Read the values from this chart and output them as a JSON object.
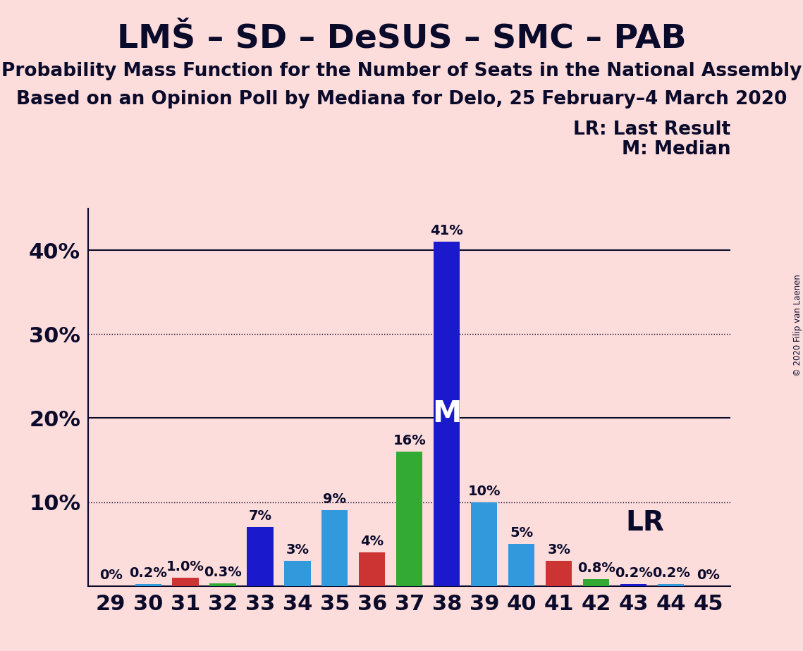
{
  "title": "LMŠ – SD – DeSUS – SMC – PAB",
  "subtitle1": "Probability Mass Function for the Number of Seats in the National Assembly",
  "subtitle2": "Based on an Opinion Poll by Mediana for Delo, 25 February–4 March 2020",
  "copyright": "© 2020 Filip van Laenen",
  "seats": [
    29,
    30,
    31,
    32,
    33,
    34,
    35,
    36,
    37,
    38,
    39,
    40,
    41,
    42,
    43,
    44,
    45
  ],
  "values": [
    0.0,
    0.2,
    1.0,
    0.3,
    7.0,
    3.0,
    9.0,
    4.0,
    16.0,
    41.0,
    10.0,
    5.0,
    3.0,
    0.8,
    0.2,
    0.2,
    0.0
  ],
  "bar_colors": [
    "#1a1acc",
    "#3399dd",
    "#cc3333",
    "#33aa33",
    "#1a1acc",
    "#3399dd",
    "#3399dd",
    "#cc3333",
    "#33aa33",
    "#1a1acc",
    "#3399dd",
    "#3399dd",
    "#cc3333",
    "#33aa33",
    "#1a1acc",
    "#3399dd",
    "#1a1acc"
  ],
  "labels": [
    "0%",
    "0.2%",
    "1.0%",
    "0.3%",
    "7%",
    "3%",
    "9%",
    "4%",
    "16%",
    "41%",
    "10%",
    "5%",
    "3%",
    "0.8%",
    "0.2%",
    "0.2%",
    "0%"
  ],
  "median_seat": 38,
  "lr_seat": 41,
  "background_color": "#fddcdc",
  "ylim_max": 45,
  "bar_width": 0.7,
  "title_fontsize": 34,
  "subtitle_fontsize": 19,
  "bar_label_fontsize": 14,
  "tick_fontsize": 22,
  "legend_fontsize": 19,
  "median_label_fontsize": 30,
  "lr_label_fontsize": 28,
  "text_color": "#0a0a2a",
  "solid_gridlines": [
    20,
    40
  ],
  "dotted_gridlines": [
    10,
    30
  ],
  "ytick_positions": [
    0,
    10,
    20,
    30,
    40
  ],
  "ytick_labels": [
    "",
    "10%",
    "20%",
    "30%",
    "40%"
  ]
}
